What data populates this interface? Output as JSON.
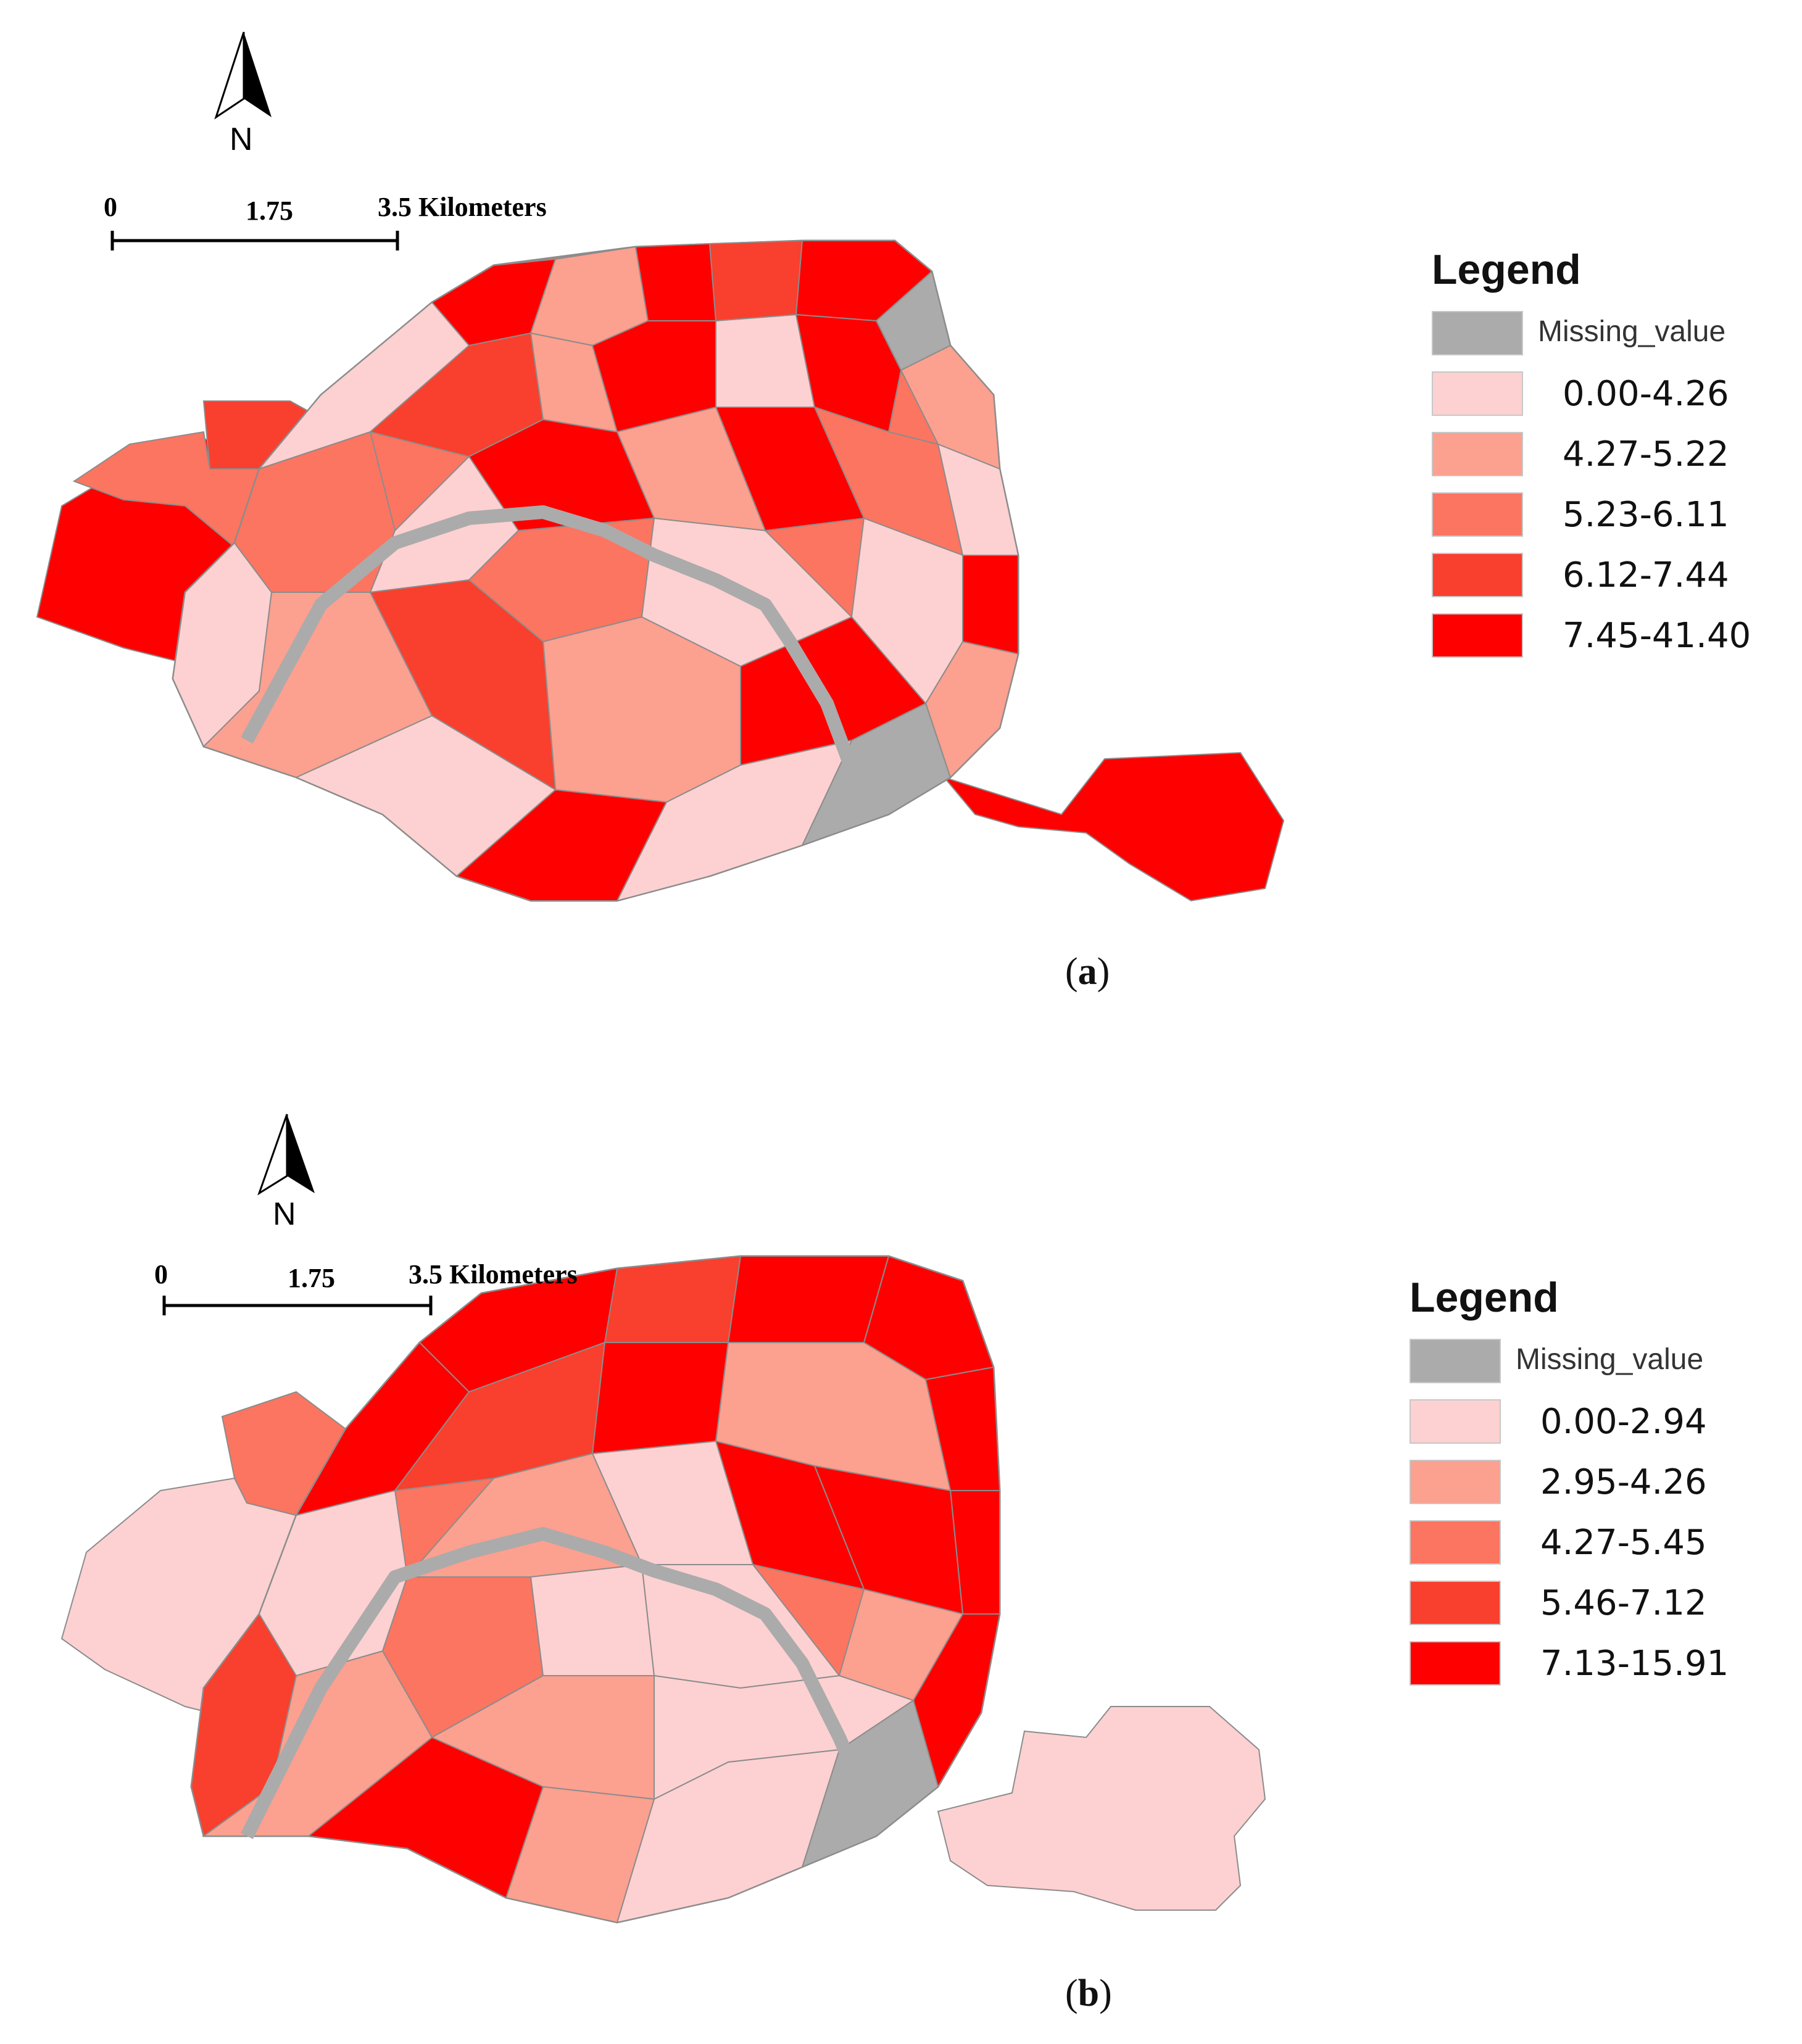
{
  "north_arrow_letter": "N",
  "colors": {
    "missing": "#ababab",
    "class1": "#fdd1d1",
    "class2": "#fca08f",
    "class3": "#fb7561",
    "class4": "#f93f2d",
    "class5": "#ff0000",
    "district_outline": "#8c8c8c"
  },
  "panels": [
    {
      "caption_letter": "a",
      "scale_bar": {
        "zero": "0",
        "mid": "1.75",
        "end": "3.5 Kilometers"
      },
      "legend": {
        "title": "Legend",
        "items": [
          {
            "label": "Missing_value",
            "color": "#ababab"
          },
          {
            "label": "0.00-4.26",
            "color": "#fdd1d1"
          },
          {
            "label": "4.27-5.22",
            "color": "#fca08f"
          },
          {
            "label": "5.23-6.11",
            "color": "#fb7561"
          },
          {
            "label": "6.12-7.44",
            "color": "#f93f2d"
          },
          {
            "label": "7.45-41.40",
            "color": "#ff0000"
          }
        ]
      }
    },
    {
      "caption_letter": "b",
      "scale_bar": {
        "zero": "0",
        "mid": "1.75",
        "end": "3.5 Kilometers"
      },
      "legend": {
        "title": "Legend",
        "items": [
          {
            "label": "Missing_value",
            "color": "#ababab"
          },
          {
            "label": "0.00-2.94",
            "color": "#fdd1d1"
          },
          {
            "label": "2.95-4.26",
            "color": "#fca08f"
          },
          {
            "label": "4.27-5.45",
            "color": "#fb7561"
          },
          {
            "label": "5.46-7.12",
            "color": "#f93f2d"
          },
          {
            "label": "7.13-15.91",
            "color": "#ff0000"
          }
        ]
      }
    }
  ]
}
